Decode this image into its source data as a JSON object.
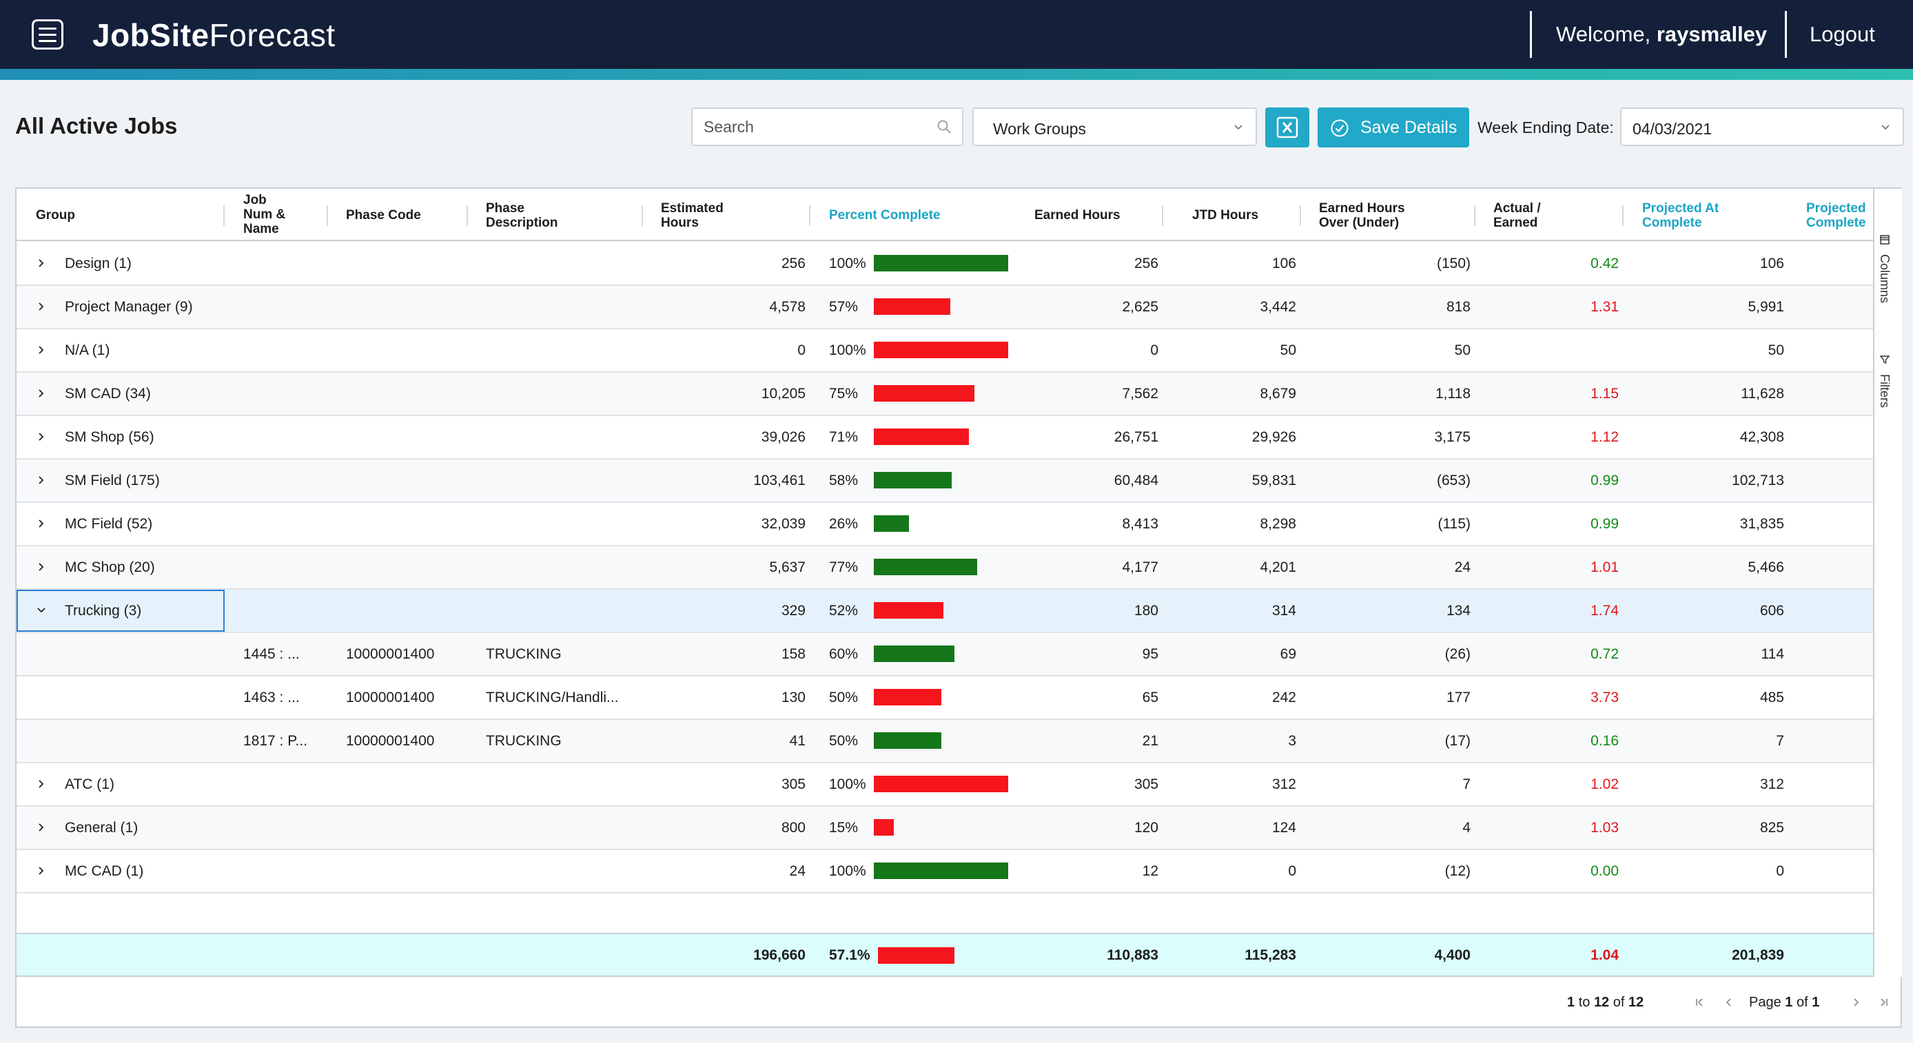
{
  "header": {
    "brand_bold": "JobSite",
    "brand_light": "Forecast",
    "welcome_prefix": "Welcome, ",
    "username": "raysmalley",
    "logout_label": "Logout"
  },
  "toolbar": {
    "page_title": "All Active Jobs",
    "search_placeholder": "Search",
    "work_groups_label": "Work Groups",
    "save_label": "Save Details",
    "week_ending_label": "Week Ending Date:",
    "week_ending_value": "04/03/2021"
  },
  "columns": {
    "group": "Group",
    "job_l1": "Job",
    "job_l2": "Num &",
    "job_l3": "Name",
    "phase_code": "Phase Code",
    "phase_desc_l1": "Phase",
    "phase_desc_l2": "Description",
    "est_l1": "Estimated",
    "est_l2": "Hours",
    "percent": "Percent Complete",
    "earned": "Earned Hours",
    "jtd": "JTD Hours",
    "over_l1": "Earned Hours",
    "over_l2": "Over (Under)",
    "ratio_l1": "Actual /",
    "ratio_l2": "Earned",
    "proj_l1": "Projected At",
    "proj_l2": "Complete",
    "proj2_l1": "Projected",
    "proj2_l2": "Complete"
  },
  "colors": {
    "good": "#15761a",
    "bad": "#f5151d",
    "accent": "#22a8c8"
  },
  "rows": [
    {
      "type": "group",
      "expanded": false,
      "group": "Design (1)",
      "job": "",
      "code": "",
      "desc": "",
      "est": "256",
      "pct": 100,
      "pct_label": "100%",
      "bar": "good",
      "earned": "256",
      "jtd": "106",
      "over": "(150)",
      "ratio": "0.42",
      "ratio_status": "good",
      "proj": "106"
    },
    {
      "type": "group",
      "expanded": false,
      "group": "Project Manager (9)",
      "job": "",
      "code": "",
      "desc": "",
      "est": "4,578",
      "pct": 57,
      "pct_label": "57%",
      "bar": "bad",
      "earned": "2,625",
      "jtd": "3,442",
      "over": "818",
      "ratio": "1.31",
      "ratio_status": "bad",
      "proj": "5,991"
    },
    {
      "type": "group",
      "expanded": false,
      "group": "N/A (1)",
      "job": "",
      "code": "",
      "desc": "",
      "est": "0",
      "pct": 100,
      "pct_label": "100%",
      "bar": "bad",
      "earned": "0",
      "jtd": "50",
      "over": "50",
      "ratio": "",
      "ratio_status": "bad",
      "proj": "50"
    },
    {
      "type": "group",
      "expanded": false,
      "group": "SM CAD (34)",
      "job": "",
      "code": "",
      "desc": "",
      "est": "10,205",
      "pct": 75,
      "pct_label": "75%",
      "bar": "bad",
      "earned": "7,562",
      "jtd": "8,679",
      "over": "1,118",
      "ratio": "1.15",
      "ratio_status": "bad",
      "proj": "11,628"
    },
    {
      "type": "group",
      "expanded": false,
      "group": "SM Shop (56)",
      "job": "",
      "code": "",
      "desc": "",
      "est": "39,026",
      "pct": 71,
      "pct_label": "71%",
      "bar": "bad",
      "earned": "26,751",
      "jtd": "29,926",
      "over": "3,175",
      "ratio": "1.12",
      "ratio_status": "bad",
      "proj": "42,308"
    },
    {
      "type": "group",
      "expanded": false,
      "group": "SM Field (175)",
      "job": "",
      "code": "",
      "desc": "",
      "est": "103,461",
      "pct": 58,
      "pct_label": "58%",
      "bar": "good",
      "earned": "60,484",
      "jtd": "59,831",
      "over": "(653)",
      "ratio": "0.99",
      "ratio_status": "good",
      "proj": "102,713"
    },
    {
      "type": "group",
      "expanded": false,
      "group": "MC Field (52)",
      "job": "",
      "code": "",
      "desc": "",
      "est": "32,039",
      "pct": 26,
      "pct_label": "26%",
      "bar": "good",
      "earned": "8,413",
      "jtd": "8,298",
      "over": "(115)",
      "ratio": "0.99",
      "ratio_status": "good",
      "proj": "31,835"
    },
    {
      "type": "group",
      "expanded": false,
      "group": "MC Shop (20)",
      "job": "",
      "code": "",
      "desc": "",
      "est": "5,637",
      "pct": 77,
      "pct_label": "77%",
      "bar": "good",
      "earned": "4,177",
      "jtd": "4,201",
      "over": "24",
      "ratio": "1.01",
      "ratio_status": "bad",
      "proj": "5,466"
    },
    {
      "type": "group",
      "expanded": true,
      "selected": true,
      "group": "Trucking (3)",
      "job": "",
      "code": "",
      "desc": "",
      "est": "329",
      "pct": 52,
      "pct_label": "52%",
      "bar": "bad",
      "earned": "180",
      "jtd": "314",
      "over": "134",
      "ratio": "1.74",
      "ratio_status": "bad",
      "proj": "606"
    },
    {
      "type": "child",
      "group": "",
      "job": "1445 : ...",
      "code": "10000001400",
      "desc": "TRUCKING",
      "est": "158",
      "pct": 60,
      "pct_label": "60%",
      "bar": "good",
      "earned": "95",
      "jtd": "69",
      "over": "(26)",
      "ratio": "0.72",
      "ratio_status": "good",
      "proj": "114"
    },
    {
      "type": "child",
      "group": "",
      "job": "1463 : ...",
      "code": "10000001400",
      "desc": "TRUCKING/Handli...",
      "est": "130",
      "pct": 50,
      "pct_label": "50%",
      "bar": "bad",
      "earned": "65",
      "jtd": "242",
      "over": "177",
      "ratio": "3.73",
      "ratio_status": "bad",
      "proj": "485"
    },
    {
      "type": "child",
      "group": "",
      "job": "1817 : P...",
      "code": "10000001400",
      "desc": "TRUCKING",
      "est": "41",
      "pct": 50,
      "pct_label": "50%",
      "bar": "good",
      "earned": "21",
      "jtd": "3",
      "over": "(17)",
      "ratio": "0.16",
      "ratio_status": "good",
      "proj": "7"
    },
    {
      "type": "group",
      "expanded": false,
      "group": "ATC (1)",
      "job": "",
      "code": "",
      "desc": "",
      "est": "305",
      "pct": 100,
      "pct_label": "100%",
      "bar": "bad",
      "earned": "305",
      "jtd": "312",
      "over": "7",
      "ratio": "1.02",
      "ratio_status": "bad",
      "proj": "312"
    },
    {
      "type": "group",
      "expanded": false,
      "group": "General (1)",
      "job": "",
      "code": "",
      "desc": "",
      "est": "800",
      "pct": 15,
      "pct_label": "15%",
      "bar": "bad",
      "earned": "120",
      "jtd": "124",
      "over": "4",
      "ratio": "1.03",
      "ratio_status": "bad",
      "proj": "825"
    },
    {
      "type": "group",
      "expanded": false,
      "group": "MC CAD (1)",
      "job": "",
      "code": "",
      "desc": "",
      "est": "24",
      "pct": 100,
      "pct_label": "100%",
      "bar": "good",
      "earned": "12",
      "jtd": "0",
      "over": "(12)",
      "ratio": "0.00",
      "ratio_status": "good",
      "proj": "0"
    }
  ],
  "totals": {
    "est": "196,660",
    "pct": 57.1,
    "pct_label": "57.1%",
    "bar": "bad",
    "earned": "110,883",
    "jtd": "115,283",
    "over": "4,400",
    "ratio": "1.04",
    "ratio_status": "bad",
    "proj": "201,839"
  },
  "side_panel": {
    "columns_label": "Columns",
    "filters_label": "Filters"
  },
  "pagination": {
    "range_start": "1",
    "range_to": "to",
    "range_end": "12",
    "range_of": "of",
    "range_total": "12",
    "page_word": "Page",
    "page_current": "1",
    "page_of": "of",
    "page_total": "1"
  },
  "icons": [
    "menu-icon",
    "search-icon",
    "chevron-down-icon",
    "excel-icon",
    "check-circle-icon",
    "chevron-right-icon",
    "columns-icon",
    "filter-icon",
    "first-page-icon",
    "previous-page-icon",
    "next-page-icon",
    "last-page-icon"
  ]
}
